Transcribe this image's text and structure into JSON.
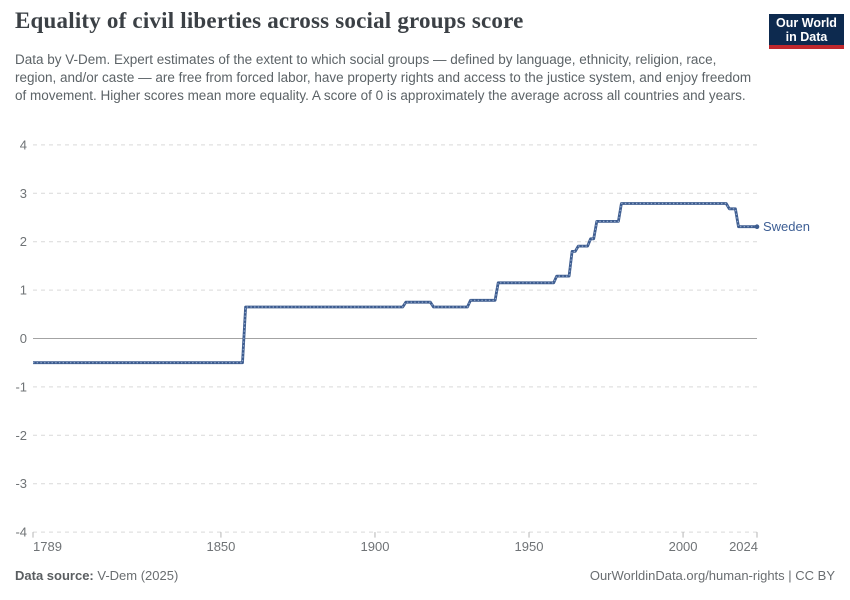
{
  "header": {
    "title": "Equality of civil liberties across social groups score",
    "subtitle": "Data by V-Dem. Expert estimates of the extent to which social groups — defined by language, ethnicity, religion, race, region, and/or caste — are free from forced labor, have property rights and access to the justice system, and enjoy freedom of movement. Higher scores mean more equality. A score of 0 is approximately the average across all countries and years.",
    "logo": {
      "line1": "Our World",
      "line2": "in Data",
      "bg_color": "#0d2a4f",
      "accent_color": "#c0282d"
    }
  },
  "chart_data": {
    "type": "line",
    "step": true,
    "title": "Equality of civil liberties across social groups score",
    "xlabel": "",
    "ylabel": "",
    "xlim": [
      1789,
      2024
    ],
    "ylim": [
      -4,
      4
    ],
    "xticks": [
      1789,
      1850,
      1900,
      1950,
      2000,
      2024
    ],
    "yticks": [
      -4,
      -3,
      -2,
      -1,
      0,
      1,
      2,
      3,
      4
    ],
    "grid": "horizontal-dashed",
    "zero_line": true,
    "legend_position": "end-of-line-label",
    "series": [
      {
        "name": "Sweden",
        "color": "#3d5c8f",
        "label_color": "#3d5e94",
        "points": [
          [
            1789,
            -0.5
          ],
          [
            1858,
            0.65
          ],
          [
            1910,
            0.75
          ],
          [
            1919,
            0.65
          ],
          [
            1931,
            0.79
          ],
          [
            1940,
            1.15
          ],
          [
            1959,
            1.29
          ],
          [
            1964,
            1.8
          ],
          [
            1966,
            1.91
          ],
          [
            1970,
            2.06
          ],
          [
            1972,
            2.42
          ],
          [
            1980,
            2.79
          ],
          [
            2015,
            2.68
          ],
          [
            2018,
            2.31
          ],
          [
            2024,
            2.31
          ]
        ]
      }
    ],
    "colors": {
      "gridline": "#d9d9d9",
      "zero_line": "#a3a3a3",
      "tick_mark": "#b5b5b5",
      "axis_text": "#6f7376",
      "line_dash_overlay": "#93a9cd"
    }
  },
  "footer": {
    "source_label": "Data source:",
    "source_value": " V-Dem (2025)",
    "credit": "OurWorldinData.org/human-rights | CC BY"
  }
}
